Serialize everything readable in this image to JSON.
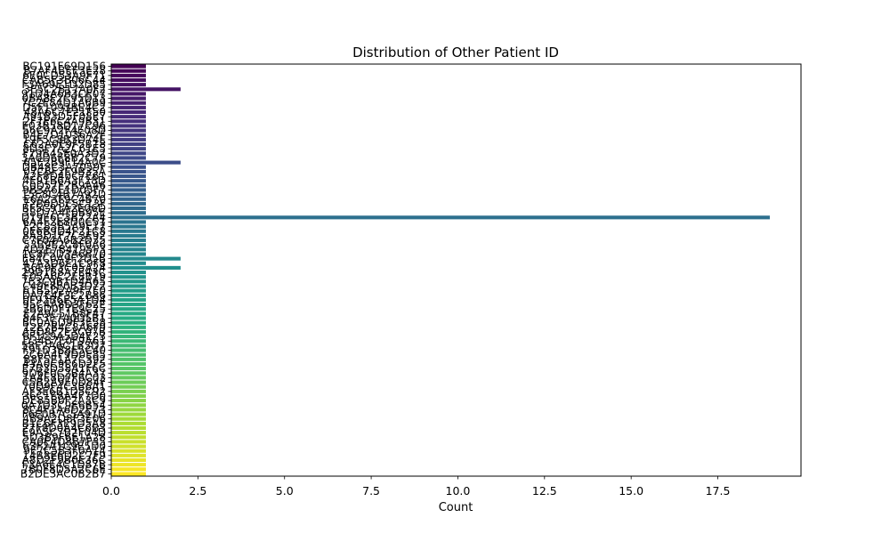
{
  "chart_data": {
    "type": "bar",
    "orientation": "horizontal",
    "title": "Distribution of Other Patient ID",
    "xlabel": "Count",
    "ylabel": "",
    "xlim": [
      0,
      19.9
    ],
    "xticks": [
      "0.0",
      "2.5",
      "5.0",
      "7.5",
      "10.0",
      "12.5",
      "15.0",
      "17.5"
    ],
    "xtick_values": [
      0,
      2.5,
      5,
      7.5,
      10,
      12.5,
      15,
      17.5
    ],
    "colormap": "viridis",
    "grid": false,
    "legend": "none",
    "categories": [
      "BC191F69D156",
      "B7AF4BEE3E28",
      "6E0CD53A9F71",
      "CAB5F3B06C44",
      "F3A69E1D2D85",
      "3E5C2B17A0F2",
      "91D4A6B3CE07",
      "0BA8F2C95D13",
      "7C2E84D1A6B9",
      "D5F1093BE4C2",
      "48A6C7E21F50",
      "A91B3D5F08E7",
      "2F7E6C4A9B31",
      "E03B58D17C96",
      "56C9A2F4E08D",
      "B4E7D1036A2F",
      "19F5C8B3D74E",
      "C62A0E9F5B18",
      "8D3F7A2C61E5",
      "F79B45E0A3D2",
      "3A0D6E8B2C79",
      "65E2B9F14A0C",
      "DB48C3A7059F",
      "07C6F2E9B35A",
      "A2F8D40C7E61",
      "4E91B6A3F28D",
      "C0D57F2B9A46",
      "9B3A6E1D05F7",
      "15E8C4B7A92D",
      "E6A23F9C4B70",
      "72B0D8E5C13F",
      "BF5C91A2E06D",
      "38D7A4F0B95E",
      "D19E6C3B72A4",
      "6A4F2E8D0C51",
      "F2C83B5A9E17",
      "0E6B9D4F21C8",
      "8A5D1F7C3E92",
      "C7F04A6B2D35",
      "53B9E2C8F0A6",
      "AD2E7B4195F3",
      "1C8F5D3A6B70",
      "E84C0A9F2D5B",
      "47A3D6E1C9F8",
      "B6E9F3C05A24",
      "29D1B8A7E43C",
      "F05A6C2E8B19",
      "7E3C9B1D4A65",
      "C49F8E0B3D72",
      "61B5D2A9F7E0",
      "DA7E4F3C2B86",
      "0F92B6E5A1D4",
      "95C4A8D3F62E",
      "3B6D0F7E9C25",
      "E2A9C51B8F47",
      "84F3E7A0D5B1",
      "BC0A6D9F3E58",
      "12E7B4C8A6F9",
      "A5D8F2E3C07B",
      "6F1C9A5D4E23",
      "D34B7E0F9A61",
      "58E2A6C1B3D7",
      "F91D3B8E5C40",
      "2C6A4F9D0E85",
      "B8F5E1A7C392",
      "43A0C9E6D2F5",
      "E7B3D58A1F6C",
      "9D6F0C2B4A37",
      "1A4E8D7F6C03",
      "C5B2A9E0D84F",
      "70D9F4C3B6A1",
      "AF3E6B1D5C92",
      "36C1E8A4F7D0",
      "DE85B0F2A3C9",
      "0A7D3C9E6B54",
      "8C4F1A6D2E73",
      "F6E0B7C5A91D",
      "4B9A2D8F3E06",
      "B1C6F3E9D5A8",
      "27F8D0A4C6B3",
      "E9A5C7B2F04D",
      "5D3B9F6E1A28",
      "CA0E4D8B7F35",
      "63F2A1C9E5D0",
      "9E7C5B3F0A14",
      "14B8E6D2C7F9",
      "A8D2F9B0E36C",
      "F3A6E4C1D87B",
      "7B0F8D5A2C6E",
      "B2DE3AC0B2B7"
    ],
    "values": [
      1,
      1,
      1,
      1,
      1,
      2,
      1,
      1,
      1,
      1,
      1,
      1,
      1,
      1,
      1,
      1,
      1,
      1,
      1,
      1,
      1,
      2,
      1,
      1,
      1,
      1,
      1,
      1,
      1,
      1,
      1,
      1,
      1,
      19,
      1,
      1,
      1,
      1,
      1,
      1,
      1,
      1,
      2,
      1,
      2,
      1,
      1,
      1,
      1,
      1,
      1,
      1,
      1,
      1,
      1,
      1,
      1,
      1,
      1,
      1,
      1,
      1,
      1,
      1,
      1,
      1,
      1,
      1,
      1,
      1,
      1,
      1,
      1,
      1,
      1,
      1,
      1,
      1,
      1,
      1,
      1,
      1,
      1,
      1,
      1,
      1,
      1,
      1,
      1,
      1
    ]
  }
}
